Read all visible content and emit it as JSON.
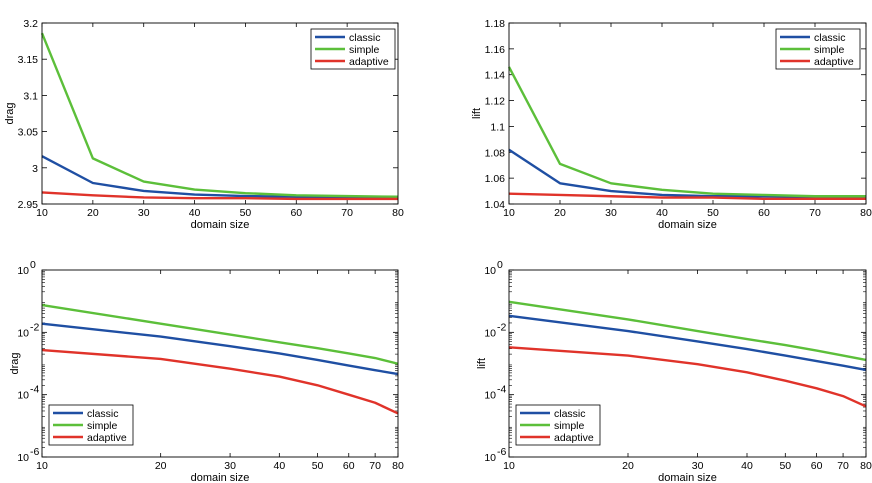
{
  "chart_data": [
    {
      "type": "line",
      "panel": "top-left",
      "xlabel": "domain size",
      "ylabel": "drag",
      "xscale": "linear",
      "yscale": "linear",
      "xlim": [
        10,
        80
      ],
      "ylim": [
        2.95,
        3.2
      ],
      "xticks": [
        10,
        20,
        30,
        40,
        50,
        60,
        70,
        80
      ],
      "yticks": [
        2.95,
        3,
        3.05,
        3.1,
        3.15,
        3.2
      ],
      "yticklabels": [
        "2.95",
        "3",
        "3.05",
        "3.1",
        "3.15",
        "3.2"
      ],
      "legend": "top-right",
      "x": [
        10,
        20,
        30,
        40,
        50,
        60,
        70,
        80
      ],
      "series": [
        {
          "name": "classic",
          "color": "#1f4fa3",
          "values": [
            3.016,
            2.979,
            2.968,
            2.963,
            2.961,
            2.96,
            2.959,
            2.959
          ]
        },
        {
          "name": "simple",
          "color": "#5cbf3a",
          "values": [
            3.186,
            3.013,
            2.981,
            2.97,
            2.965,
            2.962,
            2.961,
            2.96
          ]
        },
        {
          "name": "adaptive",
          "color": "#e0332a",
          "values": [
            2.966,
            2.962,
            2.959,
            2.958,
            2.958,
            2.957,
            2.957,
            2.957
          ]
        }
      ]
    },
    {
      "type": "line",
      "panel": "top-right",
      "xlabel": "domain size",
      "ylabel": "lift",
      "xscale": "linear",
      "yscale": "linear",
      "xlim": [
        10,
        80
      ],
      "ylim": [
        1.04,
        1.18
      ],
      "xticks": [
        10,
        20,
        30,
        40,
        50,
        60,
        70,
        80
      ],
      "yticks": [
        1.04,
        1.06,
        1.08,
        1.1,
        1.12,
        1.14,
        1.16,
        1.18
      ],
      "yticklabels": [
        "1.04",
        "1.06",
        "1.08",
        "1.1",
        "1.12",
        "1.14",
        "1.16",
        "1.18"
      ],
      "legend": "top-right",
      "x": [
        10,
        20,
        30,
        40,
        50,
        60,
        70,
        80
      ],
      "series": [
        {
          "name": "classic",
          "color": "#1f4fa3",
          "values": [
            1.082,
            1.056,
            1.05,
            1.047,
            1.046,
            1.046,
            1.045,
            1.045
          ]
        },
        {
          "name": "simple",
          "color": "#5cbf3a",
          "values": [
            1.146,
            1.071,
            1.056,
            1.051,
            1.048,
            1.047,
            1.046,
            1.046
          ]
        },
        {
          "name": "adaptive",
          "color": "#e0332a",
          "values": [
            1.048,
            1.047,
            1.046,
            1.045,
            1.045,
            1.044,
            1.044,
            1.044
          ]
        }
      ]
    },
    {
      "type": "line",
      "panel": "bottom-left",
      "xlabel": "domain size",
      "ylabel": "drag",
      "xscale": "log",
      "yscale": "log",
      "xlim": [
        10,
        80
      ],
      "ylim": [
        1e-06,
        1
      ],
      "xticks": [
        10,
        20,
        30,
        40,
        50,
        60,
        70,
        80
      ],
      "yticks": [
        1e-06,
        0.0001,
        0.01,
        1
      ],
      "yticklabels": [
        [
          "10",
          "-6"
        ],
        [
          "10",
          "-4"
        ],
        [
          "10",
          "-2"
        ],
        [
          "10",
          "0"
        ]
      ],
      "legend": "bottom-left",
      "x": [
        10,
        20,
        30,
        40,
        50,
        60,
        70,
        80
      ],
      "series": [
        {
          "name": "classic",
          "color": "#1f4fa3",
          "values": [
            0.019,
            0.0073,
            0.0036,
            0.0021,
            0.0013,
            0.00086,
            0.00061,
            0.00046
          ]
        },
        {
          "name": "simple",
          "color": "#5cbf3a",
          "values": [
            0.075,
            0.019,
            0.0085,
            0.0048,
            0.0031,
            0.0021,
            0.0015,
            0.00098
          ]
        },
        {
          "name": "adaptive",
          "color": "#e0332a",
          "values": [
            0.0027,
            0.0014,
            0.00068,
            0.00038,
            0.0002,
            0.0001,
            5.5e-05,
            2.5e-05
          ]
        }
      ]
    },
    {
      "type": "line",
      "panel": "bottom-right",
      "xlabel": "domain size",
      "ylabel": "lift",
      "xscale": "log",
      "yscale": "log",
      "xlim": [
        10,
        80
      ],
      "ylim": [
        1e-06,
        1
      ],
      "xticks": [
        10,
        20,
        30,
        40,
        50,
        60,
        70,
        80
      ],
      "yticks": [
        1e-06,
        0.0001,
        0.01,
        1
      ],
      "yticklabels": [
        [
          "10",
          "-6"
        ],
        [
          "10",
          "-4"
        ],
        [
          "10",
          "-2"
        ],
        [
          "10",
          "0"
        ]
      ],
      "legend": "bottom-left",
      "x": [
        10,
        20,
        30,
        40,
        50,
        60,
        70,
        80
      ],
      "series": [
        {
          "name": "classic",
          "color": "#1f4fa3",
          "values": [
            0.034,
            0.011,
            0.0051,
            0.0029,
            0.0018,
            0.0012,
            0.00085,
            0.00062
          ]
        },
        {
          "name": "simple",
          "color": "#5cbf3a",
          "values": [
            0.095,
            0.026,
            0.011,
            0.0061,
            0.0039,
            0.0026,
            0.0018,
            0.0013
          ]
        },
        {
          "name": "adaptive",
          "color": "#e0332a",
          "values": [
            0.0033,
            0.0018,
            0.00095,
            0.00052,
            0.00028,
            0.00016,
            9e-05,
            4.2e-05
          ]
        }
      ]
    }
  ]
}
